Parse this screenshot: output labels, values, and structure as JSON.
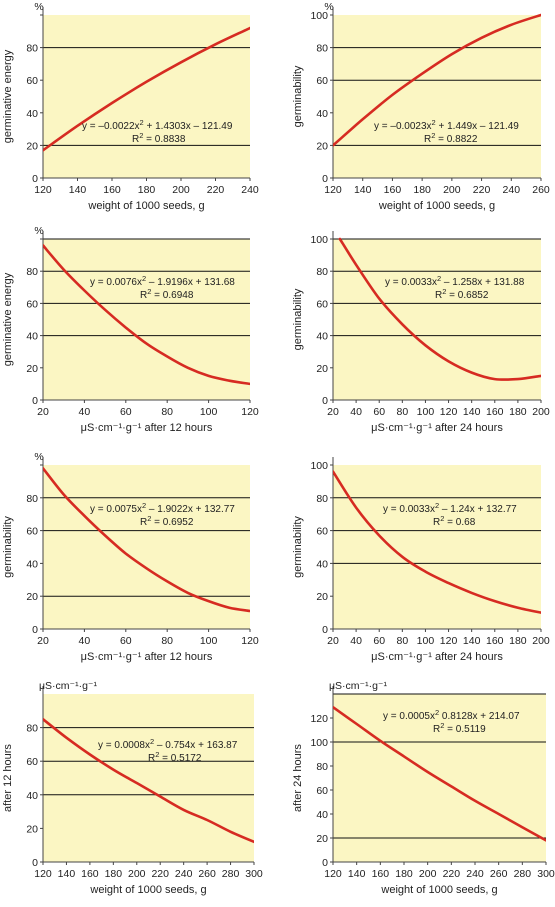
{
  "colors": {
    "plot_bg": "#fbf6c3",
    "curve": "#d62b22",
    "grid": "#111111"
  },
  "chart_data": [
    {
      "type": "line",
      "xlabel": "weight of 1000 seeds, g",
      "ylabel": "germinative energy",
      "unit": "%",
      "xlim": [
        120,
        240
      ],
      "ylim": [
        0,
        100
      ],
      "xticks": [
        120,
        140,
        160,
        180,
        200,
        220,
        240
      ],
      "xtick_labels": [
        "120",
        "140",
        "160",
        "180",
        "200",
        "220",
        "240"
      ],
      "yticks": [
        0,
        20,
        40,
        60,
        80,
        100
      ],
      "ytick_labels": [
        "0",
        "20",
        "40",
        "60",
        "80",
        ""
      ],
      "grid_y": [
        20,
        80
      ],
      "equation": "y = –0.0022x² + 1.4303x – 121.49",
      "r2": "R² = 0.8838",
      "curve": {
        "x": [
          120,
          140,
          160,
          180,
          200,
          220,
          240
        ],
        "y": [
          17,
          32,
          46,
          59,
          71,
          82,
          92
        ]
      }
    },
    {
      "type": "line",
      "xlabel": "weight of 1000 seeds, g",
      "ylabel": "germinability",
      "unit": "%",
      "xlim": [
        120,
        260
      ],
      "ylim": [
        0,
        100
      ],
      "xticks": [
        120,
        140,
        160,
        180,
        200,
        220,
        240,
        260
      ],
      "xtick_labels": [
        "120",
        "140",
        "160",
        "180",
        "200",
        "220",
        "240",
        "260"
      ],
      "yticks": [
        0,
        20,
        40,
        60,
        80,
        100
      ],
      "ytick_labels": [
        "0",
        "20",
        "40",
        "60",
        "80",
        "100"
      ],
      "grid_y": [
        20,
        60,
        80
      ],
      "equation": "y = –0.0023x² + 1.449x – 121.49",
      "r2": "R² = 0.8822",
      "curve": {
        "x": [
          120,
          140,
          160,
          180,
          200,
          220,
          240,
          260
        ],
        "y": [
          20,
          36,
          51,
          64,
          76,
          86,
          94,
          100
        ]
      }
    },
    {
      "type": "line",
      "xlabel": "μS·cm⁻¹·g⁻¹ after 12 hours",
      "ylabel": "germinative energy",
      "unit": "%",
      "xlim": [
        20,
        120
      ],
      "ylim": [
        0,
        100
      ],
      "xticks": [
        20,
        40,
        60,
        80,
        100,
        120
      ],
      "xtick_labels": [
        "20",
        "40",
        "60",
        "80",
        "100",
        "120"
      ],
      "yticks": [
        0,
        20,
        40,
        60,
        80,
        100
      ],
      "ytick_labels": [
        "0",
        "20",
        "40",
        "60",
        "80",
        ""
      ],
      "grid_y": [
        40,
        60,
        80,
        100
      ],
      "equation": "y = 0.0076x² – 1.9196x + 131.68",
      "r2": "R² = 0.6948",
      "curve": {
        "x": [
          20,
          30,
          40,
          50,
          60,
          70,
          80,
          90,
          100,
          110,
          120
        ],
        "y": [
          96,
          81,
          68,
          56,
          45,
          35,
          27,
          20,
          15,
          12,
          10
        ]
      }
    },
    {
      "type": "line",
      "xlabel": "μS·cm⁻¹·g⁻¹ after 24 hours",
      "ylabel": "germinability",
      "unit": "",
      "xlim": [
        20,
        200
      ],
      "ylim": [
        0,
        100
      ],
      "xticks": [
        20,
        40,
        60,
        80,
        100,
        120,
        140,
        160,
        180,
        200
      ],
      "xtick_labels": [
        "20",
        "40",
        "60",
        "80",
        "100",
        "120",
        "140",
        "160",
        "180",
        "200"
      ],
      "yticks": [
        0,
        20,
        40,
        60,
        80,
        100
      ],
      "ytick_labels": [
        "0",
        "20",
        "40",
        "60",
        "80",
        "100"
      ],
      "grid_y": [
        40,
        60,
        80,
        100
      ],
      "equation": "y = 0.0033x² – 1.258x + 131.88",
      "r2": "R² = 0.6852",
      "curve": {
        "x": [
          26,
          40,
          60,
          80,
          100,
          120,
          140,
          160,
          180,
          200
        ],
        "y": [
          100,
          84,
          63,
          47,
          34,
          24,
          17,
          13,
          13,
          15
        ]
      }
    },
    {
      "type": "line",
      "xlabel": "μS·cm⁻¹·g⁻¹ after 12 hours",
      "ylabel": "germinability",
      "unit": "%",
      "xlim": [
        20,
        120
      ],
      "ylim": [
        0,
        100
      ],
      "xticks": [
        20,
        40,
        60,
        80,
        100,
        120
      ],
      "xtick_labels": [
        "20",
        "40",
        "60",
        "80",
        "100",
        "120"
      ],
      "yticks": [
        0,
        20,
        40,
        60,
        80,
        100
      ],
      "ytick_labels": [
        "0",
        "20",
        "40",
        "60",
        "80",
        ""
      ],
      "grid_y": [
        20,
        60,
        80
      ],
      "equation": "y = 0.0075x² – 1.9022x + 132.77",
      "r2": "R² = 0.6952",
      "curve": {
        "x": [
          20,
          30,
          40,
          50,
          60,
          70,
          80,
          90,
          100,
          110,
          120
        ],
        "y": [
          98,
          82,
          69,
          57,
          46,
          37,
          29,
          22,
          17,
          13,
          11
        ]
      }
    },
    {
      "type": "line",
      "xlabel": "μS·cm⁻¹·g⁻¹ after 24 hours",
      "ylabel": "germinability",
      "unit": "",
      "xlim": [
        20,
        200
      ],
      "ylim": [
        0,
        100
      ],
      "xticks": [
        20,
        40,
        60,
        80,
        100,
        120,
        140,
        160,
        180,
        200
      ],
      "xtick_labels": [
        "20",
        "40",
        "60",
        "80",
        "100",
        "120",
        "140",
        "160",
        "180",
        "200"
      ],
      "yticks": [
        0,
        20,
        40,
        60,
        80,
        100
      ],
      "ytick_labels": [
        "0",
        "20",
        "40",
        "60",
        "80",
        "100"
      ],
      "grid_y": [
        40,
        60,
        80
      ],
      "equation": "y = 0.0033x² – 1.24x + 132.77",
      "r2": "R² = 0.68",
      "curve": {
        "x": [
          20,
          40,
          60,
          80,
          100,
          120,
          140,
          160,
          180,
          200
        ],
        "y": [
          96,
          74,
          57,
          44,
          35,
          28,
          22,
          17,
          13,
          10
        ]
      }
    },
    {
      "type": "line",
      "xlabel": "weight of 1000 seeds, g",
      "ylabel": "after 12 hours",
      "unit": "μS·cm⁻¹·g⁻¹",
      "xlim": [
        120,
        300
      ],
      "ylim": [
        0,
        100
      ],
      "xticks": [
        120,
        140,
        160,
        180,
        200,
        220,
        240,
        260,
        280,
        300
      ],
      "xtick_labels": [
        "120",
        "140",
        "160",
        "180",
        "200",
        "220",
        "240",
        "260",
        "280",
        "300"
      ],
      "yticks": [
        0,
        20,
        40,
        60,
        80
      ],
      "ytick_labels": [
        "0",
        "20",
        "40",
        "60",
        "80"
      ],
      "grid_y": [
        40,
        60,
        80
      ],
      "equation": "y = 0.0008x² – 0.754x + 163.87",
      "r2": "R² = 0.5172",
      "curve": {
        "x": [
          120,
          140,
          160,
          180,
          200,
          220,
          240,
          260,
          280,
          300
        ],
        "y": [
          85,
          74,
          64,
          55,
          47,
          39,
          31,
          25,
          18,
          12
        ]
      }
    },
    {
      "type": "line",
      "xlabel": "weight of 1000 seeds, g",
      "ylabel": "after 24 hours",
      "unit": "μS·cm⁻¹·g⁻¹",
      "xlim": [
        120,
        300
      ],
      "ylim": [
        0,
        140
      ],
      "xticks": [
        120,
        140,
        160,
        180,
        200,
        220,
        240,
        260,
        280,
        300
      ],
      "xtick_labels": [
        "120",
        "140",
        "160",
        "180",
        "200",
        "220",
        "240",
        "260",
        "280",
        "300"
      ],
      "yticks": [
        0,
        20,
        40,
        60,
        80,
        100,
        120
      ],
      "ytick_labels": [
        "0",
        "20",
        "40",
        "60",
        "80",
        "100",
        "120"
      ],
      "grid_y": [
        20,
        100,
        140
      ],
      "equation": "y = 0.0005x²  0.8128x + 214.07",
      "r2": "R² = 0.5119",
      "curve": {
        "x": [
          120,
          140,
          160,
          180,
          200,
          220,
          240,
          260,
          280,
          300
        ],
        "y": [
          129,
          115,
          101,
          88,
          75,
          63,
          51,
          40,
          29,
          18
        ]
      }
    }
  ]
}
